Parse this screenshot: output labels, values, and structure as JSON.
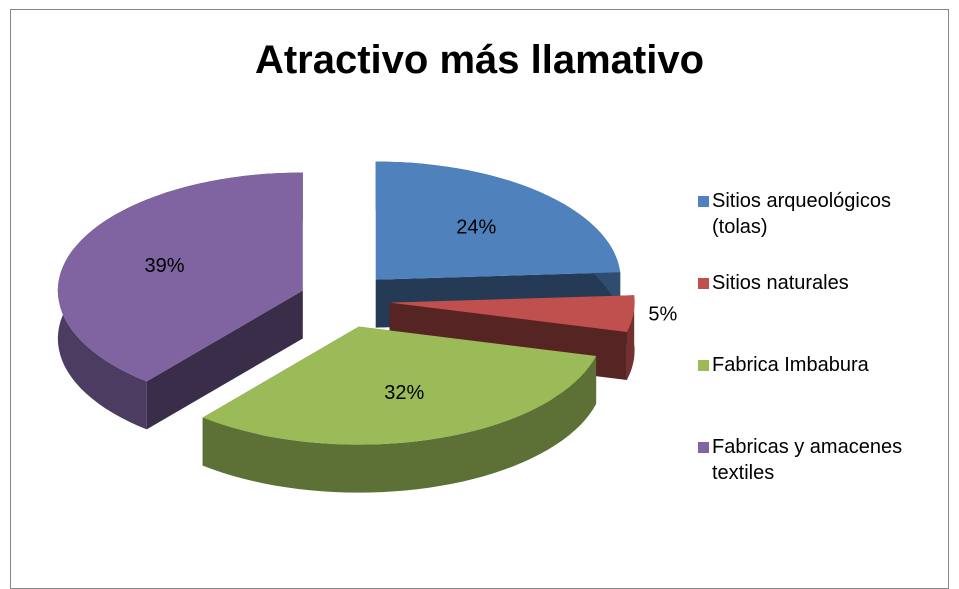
{
  "chart_data": {
    "type": "pie",
    "title": "Atractivo más llamativo",
    "categories": [
      "Sitios arqueológicos (tolas)",
      "Sitios naturales",
      "Fabrica Imbabura",
      "Fabricas y amacenes textiles"
    ],
    "values": [
      24,
      5,
      32,
      39
    ],
    "value_labels": [
      "24%",
      "5%",
      "32%",
      "39%"
    ],
    "colors": [
      "#4f81bd",
      "#c0504d",
      "#9bbb59",
      "#8064a2"
    ],
    "legend": "right"
  }
}
